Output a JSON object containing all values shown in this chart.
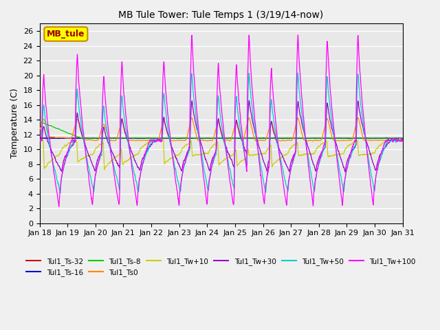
{
  "title": "MB Tule Tower: Tule Temps 1 (3/19/14-now)",
  "ylabel": "Temperature (C)",
  "xlim_days": [
    18,
    31
  ],
  "ylim": [
    0,
    27
  ],
  "yticks": [
    0,
    2,
    4,
    6,
    8,
    10,
    12,
    14,
    16,
    18,
    20,
    22,
    24,
    26
  ],
  "xtick_labels": [
    "Jan 18",
    "Jan 19",
    "Jan 20",
    "Jan 21",
    "Jan 22",
    "Jan 23",
    "Jan 24",
    "Jan 25",
    "Jan 26",
    "Jan 27",
    "Jan 28",
    "Jan 29",
    "Jan 30",
    "Jan 31"
  ],
  "legend_box_text": "MB_tule",
  "legend_box_color": "#ffff00",
  "legend_box_border": "#cc8800",
  "series_colors": {
    "Tul1_Ts-32": "#cc0000",
    "Tul1_Ts-16": "#0000cc",
    "Tul1_Ts-8": "#00cc00",
    "Tul1_Ts0": "#ff8800",
    "Tul1_Tw+10": "#cccc00",
    "Tul1_Tw+30": "#9900cc",
    "Tul1_Tw+50": "#00cccc",
    "Tul1_Tw+100": "#ff00ff"
  },
  "bg_color": "#e8e8e8",
  "grid_color": "#ffffff",
  "spike_peak_heights": [
    20.5,
    23.3,
    20.3,
    22.2,
    22.5,
    26.0,
    22.0,
    21.8,
    26.0,
    21.5,
    26.0,
    25.5,
    26.0
  ],
  "spike_positions": [
    18.15,
    19.35,
    20.3,
    20.95,
    22.45,
    23.45,
    24.4,
    25.05,
    25.5,
    26.3,
    27.25,
    28.3,
    29.4
  ],
  "base_temp": 11.2
}
